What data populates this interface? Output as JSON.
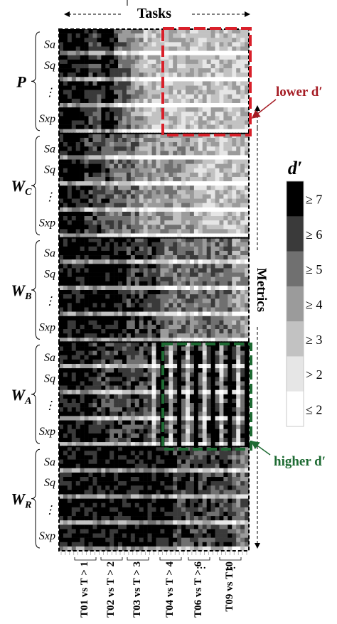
{
  "chart_data": {
    "type": "heatmap",
    "title": "Tasks",
    "y_axis_label": "Metrics",
    "colorbar": {
      "title": "d′",
      "levels": [
        "≥ 7",
        "≥ 6",
        "≥ 5",
        "≥ 4",
        "≥ 3",
        "> 2",
        "≤ 2"
      ],
      "colors": [
        "#000000",
        "#3a3a3a",
        "#707070",
        "#9b9b9b",
        "#c2c2c2",
        "#e6e6e6",
        "#ffffff"
      ]
    },
    "x_tick_labels": [
      "T01 vs T > 1",
      "T02 vs T > 2",
      "T03 vs T > 3",
      "T04 vs T > 4",
      "T06 vs T > 6",
      "T09 vs T10"
    ],
    "x_ellipses": [
      "…",
      "…"
    ],
    "groups": [
      {
        "symbol": "P",
        "subscript": "",
        "metrics": [
          "Sa",
          "Sq",
          "⋮",
          "Sxp"
        ]
      },
      {
        "symbol": "W",
        "subscript": "C",
        "metrics": [
          "Sa",
          "Sq",
          "⋮",
          "Sxp"
        ]
      },
      {
        "symbol": "W",
        "subscript": "B",
        "metrics": [
          "Sa",
          "Sq",
          "⋮",
          "Sxp"
        ]
      },
      {
        "symbol": "W",
        "subscript": "A",
        "metrics": [
          "Sa",
          "Sq",
          "⋮",
          "Sxp"
        ]
      },
      {
        "symbol": "W",
        "subscript": "R",
        "metrics": [
          "Sa",
          "Sq",
          "⋮",
          "Sxp"
        ]
      }
    ],
    "annotations": [
      {
        "text": "lower d′",
        "color": "#a51c24"
      },
      {
        "text": "higher d′",
        "color": "#1e6b33"
      }
    ],
    "n_task_columns": 45,
    "n_rows_per_group": 24,
    "group_column_levels": [
      [
        7,
        7,
        7,
        7,
        7,
        7,
        7,
        6,
        6,
        6,
        7,
        7,
        7,
        6,
        5,
        5,
        5,
        4,
        4,
        4,
        3,
        3,
        3,
        3,
        3,
        3,
        3,
        3,
        3,
        3,
        3,
        3,
        3,
        3,
        3,
        3,
        3,
        3,
        3,
        3,
        3,
        3,
        3,
        3,
        3
      ],
      [
        7,
        7,
        7,
        7,
        7,
        7,
        6,
        6,
        6,
        6,
        6,
        6,
        5,
        5,
        5,
        5,
        5,
        5,
        5,
        4,
        4,
        4,
        4,
        4,
        4,
        4,
        4,
        4,
        4,
        4,
        4,
        4,
        3,
        3,
        3,
        3,
        3,
        3,
        3,
        3,
        3,
        3,
        3,
        3,
        3
      ],
      [
        7,
        7,
        7,
        7,
        7,
        7,
        7,
        7,
        7,
        7,
        7,
        7,
        7,
        7,
        7,
        7,
        6,
        6,
        6,
        6,
        6,
        6,
        6,
        6,
        5,
        5,
        5,
        5,
        5,
        5,
        5,
        5,
        5,
        5,
        5,
        5,
        5,
        5,
        5,
        5,
        5,
        4,
        4,
        4,
        4
      ],
      [
        7,
        7,
        7,
        7,
        7,
        7,
        7,
        7,
        6,
        6,
        6,
        6,
        6,
        6,
        6,
        6,
        6,
        6,
        6,
        6,
        6,
        6,
        6,
        6,
        6,
        6,
        6,
        6,
        6,
        6,
        6,
        6,
        6,
        6,
        6,
        6,
        6,
        6,
        6,
        6,
        6,
        6,
        6,
        6,
        5
      ],
      [
        7,
        7,
        7,
        7,
        7,
        7,
        7,
        7,
        7,
        7,
        7,
        7,
        7,
        7,
        7,
        7,
        7,
        7,
        7,
        7,
        7,
        7,
        7,
        7,
        7,
        7,
        7,
        6,
        6,
        6,
        6,
        6,
        6,
        6,
        6,
        6,
        6,
        6,
        6,
        6,
        6,
        5,
        5,
        5,
        5
      ]
    ]
  }
}
